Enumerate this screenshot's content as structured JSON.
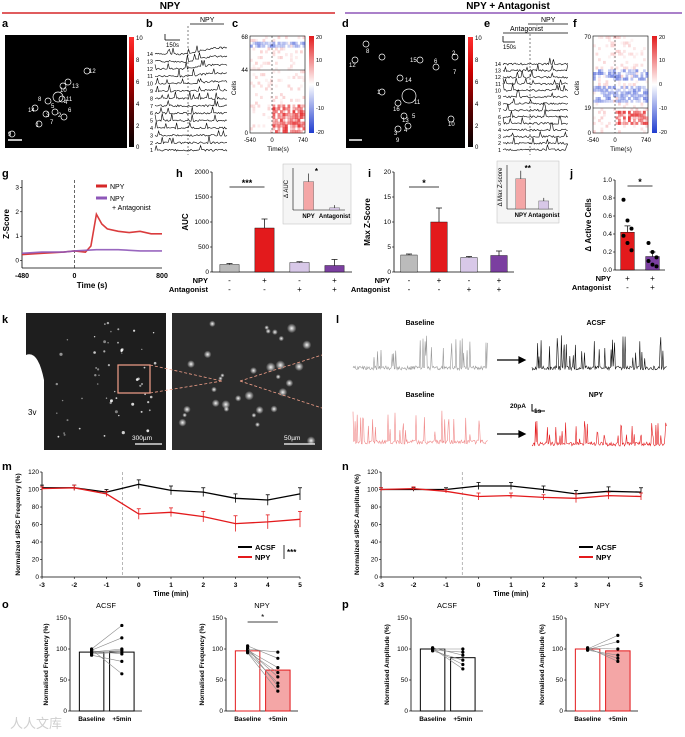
{
  "headers": {
    "left": "NPY",
    "right": "NPY + Antagonist",
    "left_color": "#d62728",
    "right_color": "#8e57b8"
  },
  "panel_letters": [
    "a",
    "b",
    "c",
    "d",
    "e",
    "f",
    "g",
    "h",
    "i",
    "j",
    "k",
    "l",
    "m",
    "n",
    "o",
    "p"
  ],
  "panel_a": {
    "colorbar_ticks": [
      "10",
      "8",
      "6",
      "4",
      "2",
      "0"
    ],
    "cells": [
      "12",
      "13",
      "10",
      "11",
      "8",
      "5",
      "4",
      "14",
      "3",
      "2",
      "6",
      "1",
      "9",
      "7"
    ]
  },
  "panel_b": {
    "label": "NPY",
    "scale": "150s",
    "rows": [
      "14",
      "13",
      "12",
      "11",
      "10",
      "9",
      "8",
      "7",
      "6",
      "5",
      "4",
      "3",
      "2",
      "1"
    ]
  },
  "panel_c": {
    "ylabel": "Cells",
    "xlabel": "Time(s)",
    "xticks": [
      "-540",
      "0",
      "740"
    ],
    "yticks": [
      "68",
      "44",
      "0"
    ],
    "cbar_ticks": [
      "20",
      "10",
      "0",
      "-10",
      "-20"
    ]
  },
  "panel_d": {
    "colorbar_ticks": [
      "10",
      "8",
      "6",
      "4",
      "2",
      "0"
    ],
    "cells": [
      "8",
      "15",
      "6",
      "2",
      "12",
      "7",
      "14",
      "11",
      "1",
      "16",
      "10",
      "5",
      "13",
      "3",
      "4",
      "9"
    ]
  },
  "panel_e": {
    "label_top": "NPY",
    "label_bottom": "Antagonist",
    "scale": "150s",
    "rows": [
      "14",
      "13",
      "12",
      "11",
      "10",
      "9",
      "8",
      "7",
      "6",
      "5",
      "4",
      "3",
      "2",
      "1"
    ]
  },
  "panel_f": {
    "ylabel": "Cells",
    "xlabel": "Time(s)",
    "xticks": [
      "-540",
      "0",
      "740"
    ],
    "yticks": [
      "70",
      "19",
      "0"
    ],
    "cbar_ticks": [
      "20",
      "10",
      "0",
      "-10",
      "-20"
    ]
  },
  "chart_data": [
    {
      "panel": "g",
      "type": "line",
      "ylabel": "Z-Score",
      "xlabel": "Time (s)",
      "xlim": [
        -480,
        800
      ],
      "ylim": [
        -0.3,
        3.3
      ],
      "xticks": [
        "-480",
        "0",
        "800"
      ],
      "yticks": [
        "3",
        "2",
        "1",
        "0"
      ],
      "series": [
        {
          "name": "NPY",
          "color": "#d62728",
          "x": [
            -480,
            -300,
            -100,
            0,
            100,
            150,
            200,
            250,
            300,
            400,
            500,
            600,
            700,
            800
          ],
          "y": [
            0.25,
            0.3,
            0.35,
            0.4,
            0.35,
            0.6,
            1.9,
            1.5,
            1.3,
            1.2,
            1.15,
            1.2,
            1.1,
            1.1
          ]
        },
        {
          "name": "NPY\n+ Antagonist",
          "color": "#8e57b8",
          "x": [
            -480,
            -300,
            -100,
            0,
            200,
            400,
            600,
            800
          ],
          "y": [
            0.3,
            0.35,
            0.35,
            0.4,
            0.45,
            0.45,
            0.4,
            0.4
          ]
        }
      ]
    },
    {
      "panel": "h",
      "type": "bar",
      "ylabel": "AUC",
      "ylim": [
        0,
        2000
      ],
      "yticks": [
        "2000",
        "1500",
        "1000",
        "500",
        "0"
      ],
      "values": [
        150,
        880,
        190,
        130
      ],
      "errors": [
        20,
        180,
        15,
        120
      ],
      "colors": [
        "#bbbbbb",
        "#e31a1c",
        "#d8c8e8",
        "#7b3fa0"
      ],
      "sig": "***",
      "inset": {
        "ylabel": "Δ AUC",
        "categories": [
          "NPY",
          "Antagonist"
        ],
        "values": [
          10.5,
          0.8
        ],
        "errors": [
          3,
          1
        ],
        "sig": "*"
      },
      "rows": {
        "npy": "NPY",
        "antagonist": "Antagonist",
        "npy_vals": [
          "-",
          "+",
          "-",
          "+"
        ],
        "ant_vals": [
          "-",
          "-",
          "+",
          "+"
        ]
      }
    },
    {
      "panel": "i",
      "type": "bar",
      "ylabel": "Max Z-Score",
      "ylim": [
        0,
        20
      ],
      "yticks": [
        "20",
        "15",
        "10",
        "5",
        "0"
      ],
      "values": [
        3.4,
        10,
        2.9,
        3.3
      ],
      "errors": [
        0.2,
        2.8,
        0.2,
        0.9
      ],
      "colors": [
        "#bbbbbb",
        "#e31a1c",
        "#d8c8e8",
        "#7b3fa0"
      ],
      "sig": "*",
      "inset": {
        "ylabel": "Δ Max Z-score",
        "categories": [
          "NPY",
          "Antagonist"
        ],
        "values": [
          3.0,
          0.8
        ],
        "errors": [
          0.8,
          0.3
        ],
        "sig": "**"
      },
      "rows": {
        "npy": "NPY",
        "antagonist": "Antagonist",
        "npy_vals": [
          "-",
          "+",
          "-",
          "+"
        ],
        "ant_vals": [
          "-",
          "-",
          "+",
          "+"
        ]
      }
    },
    {
      "panel": "j",
      "type": "bar",
      "ylabel": "Δ Active Cells",
      "ylim": [
        0,
        1.0
      ],
      "yticks": [
        "1.0",
        "0.8",
        "0.6",
        "0.4",
        "0.2",
        "0.0"
      ],
      "values": [
        0.42,
        0.15
      ],
      "errors": [
        0.07,
        0.05
      ],
      "colors": [
        "#e31a1c",
        "#7b3fa0"
      ],
      "sig": "*",
      "points": [
        [
          0.78,
          0.55,
          0.46,
          0.38,
          0.3,
          0.22
        ],
        [
          0.3,
          0.2,
          0.14,
          0.1,
          0.06,
          0.04
        ]
      ],
      "rows": {
        "npy": "NPY",
        "antagonist": "Antagonist",
        "npy_vals": [
          "+",
          "+"
        ],
        "ant_vals": [
          "-",
          "+"
        ]
      }
    },
    {
      "panel": "m",
      "type": "line",
      "ylabel": "Normalized sIPSC Frequency (%)",
      "xlabel": "Time (min)",
      "xlim": [
        -3,
        5
      ],
      "ylim": [
        0,
        120
      ],
      "xticks": [
        "-3",
        "-2",
        "-1",
        "0",
        "1",
        "2",
        "3",
        "4",
        "5"
      ],
      "yticks": [
        "120",
        "100",
        "80",
        "60",
        "40",
        "20",
        "0"
      ],
      "series": [
        {
          "name": "ACSF",
          "color": "#000000",
          "x": [
            -3,
            -2,
            -1,
            0,
            1,
            2,
            3,
            4,
            5
          ],
          "y": [
            102,
            102,
            97,
            106,
            99,
            97,
            90,
            88,
            95
          ],
          "err": [
            3,
            3,
            3,
            5,
            5,
            5,
            5,
            6,
            7
          ]
        },
        {
          "name": "NPY",
          "color": "#e31a1c",
          "x": [
            -3,
            -2,
            -1,
            0,
            1,
            2,
            3,
            4,
            5
          ],
          "y": [
            101,
            102,
            95,
            72,
            74,
            69,
            61,
            63,
            66
          ],
          "err": [
            2,
            3,
            3,
            6,
            5,
            6,
            9,
            8,
            9
          ]
        }
      ],
      "sig": "***"
    },
    {
      "panel": "n",
      "type": "line",
      "ylabel": "Normalized sIPSC Amplitude (%)",
      "xlabel": "Time (min)",
      "xlim": [
        -3,
        5
      ],
      "ylim": [
        0,
        120
      ],
      "xticks": [
        "-3",
        "-2",
        "-1",
        "0",
        "1",
        "2",
        "3",
        "4",
        "5"
      ],
      "yticks": [
        "120",
        "100",
        "80",
        "60",
        "40",
        "20",
        "0"
      ],
      "series": [
        {
          "name": "ACSF",
          "color": "#000000",
          "x": [
            -3,
            -2,
            -1,
            0,
            1,
            2,
            3,
            4,
            5
          ],
          "y": [
            100,
            100,
            100,
            104,
            104,
            100,
            95,
            98,
            97
          ],
          "err": [
            2,
            2,
            2,
            4,
            4,
            4,
            4,
            5,
            5
          ]
        },
        {
          "name": "NPY",
          "color": "#e31a1c",
          "x": [
            -3,
            -2,
            -1,
            0,
            1,
            2,
            3,
            4,
            5
          ],
          "y": [
            100,
            101,
            98,
            92,
            93,
            91,
            90,
            93,
            92
          ],
          "err": [
            2,
            2,
            2,
            4,
            3,
            3,
            5,
            4,
            4
          ]
        }
      ]
    },
    {
      "panel": "o1",
      "type": "bar",
      "title": "ACSF",
      "ylabel": "Normalised Frequency (%)",
      "categories": [
        "Baseline",
        "+5min"
      ],
      "ylim": [
        0,
        150
      ],
      "yticks": [
        "150",
        "100",
        "50",
        "0"
      ],
      "values": [
        95,
        95
      ],
      "colors": [
        "#ffffff",
        "#ffffff"
      ],
      "edge": "#000000",
      "pairs": [
        [
          100,
          138
        ],
        [
          98,
          118
        ],
        [
          95,
          100
        ],
        [
          97,
          92
        ],
        [
          94,
          98
        ],
        [
          92,
          95
        ],
        [
          90,
          80
        ],
        [
          99,
          60
        ]
      ]
    },
    {
      "panel": "o2",
      "type": "bar",
      "title": "NPY",
      "ylabel": "Normalised Frequency (%)",
      "categories": [
        "Baseline",
        "+5min"
      ],
      "ylim": [
        0,
        150
      ],
      "yticks": [
        "150",
        "100",
        "50",
        "0"
      ],
      "values": [
        97,
        66
      ],
      "colors": [
        "#ffffff",
        "#f4a6a6"
      ],
      "edge": "#e31a1c",
      "sig": "*",
      "pairs": [
        [
          100,
          95
        ],
        [
          105,
          85
        ],
        [
          98,
          70
        ],
        [
          96,
          62
        ],
        [
          99,
          55
        ],
        [
          95,
          45
        ],
        [
          102,
          40
        ],
        [
          94,
          32
        ]
      ]
    },
    {
      "panel": "p1",
      "type": "bar",
      "title": "ACSF",
      "ylabel": "Normalised Amplitude (%)",
      "categories": [
        "Baseline",
        "+5min"
      ],
      "ylim": [
        0,
        150
      ],
      "yticks": [
        "150",
        "100",
        "50",
        "0"
      ],
      "values": [
        100,
        86
      ],
      "colors": [
        "#ffffff",
        "#ffffff"
      ],
      "edge": "#000000",
      "pairs": [
        [
          100,
          100
        ],
        [
          98,
          95
        ],
        [
          102,
          90
        ],
        [
          97,
          82
        ],
        [
          100,
          75
        ],
        [
          101,
          68
        ]
      ]
    },
    {
      "panel": "p2",
      "type": "bar",
      "title": "NPY",
      "ylabel": "Normalised Amplitude (%)",
      "categories": [
        "Baseline",
        "+5min"
      ],
      "ylim": [
        0,
        150
      ],
      "yticks": [
        "150",
        "100",
        "50",
        "0"
      ],
      "values": [
        100,
        97
      ],
      "colors": [
        "#ffffff",
        "#f4a6a6"
      ],
      "edge": "#e31a1c",
      "pairs": [
        [
          100,
          122
        ],
        [
          99,
          112
        ],
        [
          101,
          100
        ],
        [
          98,
          90
        ],
        [
          100,
          85
        ],
        [
          102,
          80
        ]
      ]
    }
  ],
  "panel_k": {
    "label": "3v",
    "scale1": "300µm",
    "scale2": "50µm"
  },
  "panel_l": {
    "baseline1": "Baseline",
    "acsf": "ACSF",
    "baseline2": "Baseline",
    "npy": "NPY",
    "scale_pa": "20pA",
    "scale_s": "1s"
  },
  "watermark": "人人文库"
}
